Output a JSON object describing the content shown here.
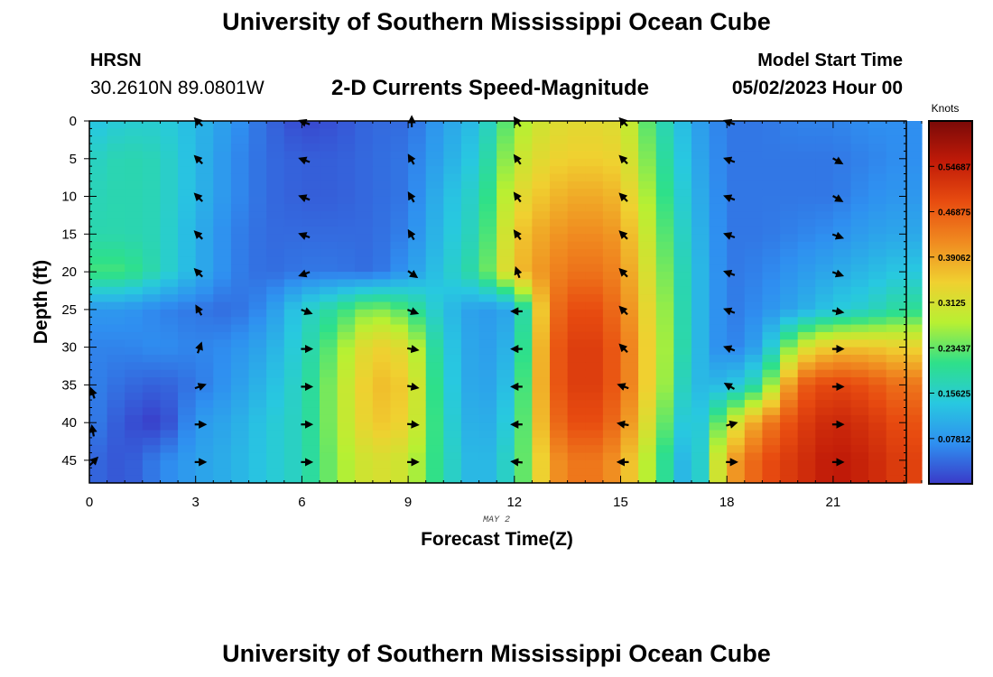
{
  "header": {
    "title": "University of Southern Mississippi Ocean Cube",
    "station": "HRSN",
    "coordinates": "30.2610N  89.0801W",
    "subtitle": "2-D Currents Speed-Magnitude",
    "model_start_label": "Model Start Time",
    "model_start_value": "05/02/2023 Hour 00"
  },
  "footer": {
    "title": "University of Southern Mississippi Ocean Cube"
  },
  "chart_data": {
    "type": "heatmap",
    "xlabel": "Forecast Time(Z)",
    "ylabel": "Depth (ft)",
    "date_label": "MAY 2",
    "colorbar_label": "Knots",
    "x_ticks": [
      0,
      3,
      6,
      9,
      12,
      15,
      18,
      21
    ],
    "y_ticks": [
      0,
      5,
      10,
      15,
      20,
      25,
      30,
      35,
      40,
      45
    ],
    "colorbar_ticks": [
      "0.54687",
      "0.46875",
      "0.39062",
      "0.3125",
      "0.23437",
      "0.15625",
      "0.07812"
    ],
    "colorbar_values": [
      0.54687,
      0.46875,
      0.390625,
      0.3125,
      0.234375,
      0.15625,
      0.078125
    ],
    "xlim": [
      0,
      23.5
    ],
    "ylim": [
      48,
      0
    ],
    "clim": [
      0,
      0.625
    ],
    "colormap": [
      "#3a3ac8",
      "#2f8ff0",
      "#28c8e0",
      "#2ee08a",
      "#b8f032",
      "#f0d030",
      "#f08a20",
      "#e84c10",
      "#c01a08",
      "#7a0a08"
    ],
    "depths_ft": [
      0,
      5,
      10,
      15,
      20,
      25,
      30,
      35,
      40,
      45
    ],
    "speed_profiles": [
      {
        "hour": 0,
        "speeds": [
          0.13,
          0.16,
          0.17,
          0.18,
          0.22,
          0.08,
          0.06,
          0.06,
          0.06,
          0.04
        ]
      },
      {
        "hour": 1,
        "speeds": [
          0.15,
          0.18,
          0.18,
          0.18,
          0.22,
          0.08,
          0.06,
          0.04,
          0.02,
          0.02
        ]
      },
      {
        "hour": 2,
        "speeds": [
          0.15,
          0.17,
          0.17,
          0.17,
          0.17,
          0.06,
          0.07,
          0.03,
          0.0,
          0.06
        ]
      },
      {
        "hour": 3,
        "speeds": [
          0.12,
          0.12,
          0.12,
          0.11,
          0.11,
          0.05,
          0.06,
          0.05,
          0.08,
          0.09
        ]
      },
      {
        "hour": 4,
        "speeds": [
          0.08,
          0.07,
          0.07,
          0.06,
          0.06,
          0.04,
          0.07,
          0.08,
          0.1,
          0.11
        ]
      },
      {
        "hour": 5,
        "speeds": [
          0.04,
          0.04,
          0.04,
          0.04,
          0.04,
          0.07,
          0.1,
          0.12,
          0.14,
          0.14
        ]
      },
      {
        "hour": 6,
        "speeds": [
          0.01,
          0.03,
          0.03,
          0.04,
          0.05,
          0.15,
          0.16,
          0.17,
          0.17,
          0.17
        ]
      },
      {
        "hour": 7,
        "speeds": [
          0.02,
          0.03,
          0.03,
          0.04,
          0.05,
          0.2,
          0.25,
          0.27,
          0.27,
          0.26
        ]
      },
      {
        "hour": 8,
        "speeds": [
          0.04,
          0.04,
          0.04,
          0.04,
          0.04,
          0.26,
          0.35,
          0.37,
          0.36,
          0.32
        ]
      },
      {
        "hour": 9,
        "speeds": [
          0.04,
          0.05,
          0.05,
          0.06,
          0.08,
          0.22,
          0.32,
          0.35,
          0.34,
          0.3
        ]
      },
      {
        "hour": 10,
        "speeds": [
          0.09,
          0.1,
          0.12,
          0.13,
          0.14,
          0.13,
          0.15,
          0.16,
          0.17,
          0.18
        ]
      },
      {
        "hour": 11,
        "speeds": [
          0.13,
          0.15,
          0.17,
          0.18,
          0.2,
          0.08,
          0.08,
          0.08,
          0.09,
          0.1
        ]
      },
      {
        "hour": 12,
        "speeds": [
          0.26,
          0.29,
          0.32,
          0.35,
          0.36,
          0.1,
          0.12,
          0.14,
          0.16,
          0.18
        ]
      },
      {
        "hour": 13,
        "speeds": [
          0.32,
          0.34,
          0.37,
          0.4,
          0.42,
          0.44,
          0.46,
          0.46,
          0.44,
          0.4
        ]
      },
      {
        "hour": 14,
        "speeds": [
          0.33,
          0.35,
          0.39,
          0.42,
          0.45,
          0.5,
          0.52,
          0.52,
          0.5,
          0.45
        ]
      },
      {
        "hour": 15,
        "speeds": [
          0.32,
          0.34,
          0.37,
          0.4,
          0.42,
          0.44,
          0.46,
          0.46,
          0.44,
          0.4
        ]
      },
      {
        "hour": 16,
        "speeds": [
          0.2,
          0.22,
          0.24,
          0.26,
          0.28,
          0.3,
          0.31,
          0.31,
          0.28,
          0.24
        ]
      },
      {
        "hour": 17,
        "speeds": [
          0.1,
          0.11,
          0.12,
          0.13,
          0.14,
          0.14,
          0.14,
          0.12,
          0.1,
          0.08
        ]
      },
      {
        "hour": 18,
        "speeds": [
          0.05,
          0.05,
          0.05,
          0.05,
          0.05,
          0.05,
          0.05,
          0.12,
          0.28,
          0.38
        ]
      },
      {
        "hour": 19,
        "speeds": [
          0.05,
          0.05,
          0.05,
          0.05,
          0.06,
          0.07,
          0.1,
          0.2,
          0.42,
          0.48
        ]
      },
      {
        "hour": 20,
        "speeds": [
          0.06,
          0.05,
          0.05,
          0.06,
          0.08,
          0.1,
          0.3,
          0.46,
          0.5,
          0.52
        ]
      },
      {
        "hour": 21,
        "speeds": [
          0.06,
          0.05,
          0.05,
          0.07,
          0.1,
          0.14,
          0.36,
          0.5,
          0.54,
          0.56
        ]
      },
      {
        "hour": 22,
        "speeds": [
          0.07,
          0.06,
          0.07,
          0.09,
          0.12,
          0.16,
          0.36,
          0.48,
          0.52,
          0.54
        ]
      },
      {
        "hour": 23,
        "speeds": [
          0.07,
          0.07,
          0.08,
          0.1,
          0.14,
          0.2,
          0.34,
          0.44,
          0.48,
          0.5
        ]
      }
    ],
    "vector_directions_deg": [
      {
        "hour": 0,
        "depths_ft": [
          36,
          41,
          45
        ],
        "angles": [
          250,
          260,
          315
        ]
      },
      {
        "hour": 3,
        "depths_ft": [
          0,
          5,
          10,
          15,
          20,
          25,
          30,
          35,
          40,
          45
        ],
        "angles": [
          225,
          225,
          225,
          225,
          225,
          240,
          290,
          340,
          0,
          0
        ]
      },
      {
        "hour": 6,
        "depths_ft": [
          0,
          5,
          10,
          15,
          20,
          25,
          30,
          35,
          40,
          45
        ],
        "angles": [
          200,
          200,
          200,
          200,
          160,
          20,
          0,
          0,
          0,
          0
        ]
      },
      {
        "hour": 9,
        "depths_ft": [
          0,
          5,
          10,
          15,
          20,
          25,
          30,
          35,
          40,
          45
        ],
        "angles": [
          270,
          240,
          240,
          240,
          35,
          20,
          10,
          10,
          5,
          0
        ]
      },
      {
        "hour": 12,
        "depths_ft": [
          0,
          5,
          10,
          15,
          20,
          25,
          30,
          35,
          40,
          45
        ],
        "angles": [
          235,
          235,
          235,
          235,
          250,
          180,
          180,
          180,
          180,
          185
        ]
      },
      {
        "hour": 15,
        "depths_ft": [
          0,
          5,
          10,
          15,
          20,
          25,
          30,
          35,
          40,
          45
        ],
        "angles": [
          225,
          225,
          225,
          225,
          225,
          225,
          225,
          200,
          190,
          180
        ]
      },
      {
        "hour": 18,
        "depths_ft": [
          0,
          5,
          10,
          15,
          20,
          25,
          30,
          35,
          40,
          45
        ],
        "angles": [
          200,
          200,
          200,
          200,
          200,
          200,
          200,
          210,
          345,
          0
        ]
      },
      {
        "hour": 21,
        "depths_ft": [
          5,
          10,
          15,
          20,
          25,
          30,
          35,
          40,
          45
        ],
        "angles": [
          30,
          30,
          20,
          20,
          10,
          0,
          0,
          0,
          0
        ]
      }
    ]
  }
}
